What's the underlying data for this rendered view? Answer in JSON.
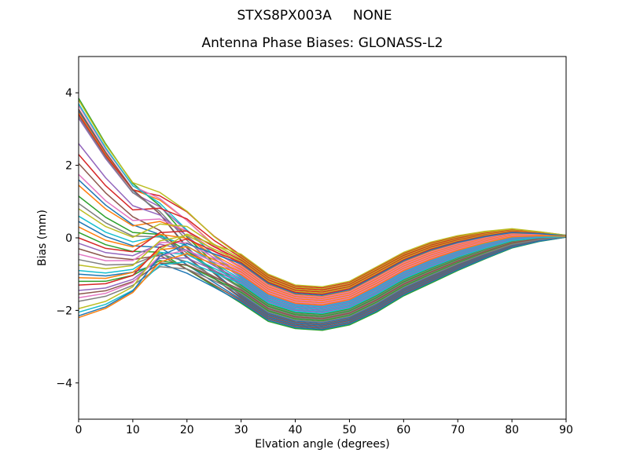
{
  "figure": {
    "suptitle": "STXS8PX003A     NONE",
    "background_color": "#ffffff",
    "spine_color": "#000000"
  },
  "chart_data": {
    "type": "line",
    "suptitle": "STXS8PX003A     NONE",
    "title": "Antenna Phase Biases: GLONASS-L2",
    "xlabel": "Elvation angle (degrees)",
    "ylabel": "Bias (mm)",
    "xlim": [
      0,
      90
    ],
    "ylim": [
      -5,
      5
    ],
    "xticks": [
      0,
      10,
      20,
      30,
      40,
      50,
      60,
      70,
      80,
      90
    ],
    "xtick_labels": [
      "0",
      "10",
      "20",
      "30",
      "40",
      "50",
      "60",
      "70",
      "80",
      "90"
    ],
    "yticks": [
      -4,
      -2,
      0,
      2,
      4
    ],
    "ytick_labels": [
      "−4",
      "−2",
      "0",
      "2",
      "4"
    ],
    "grid": false,
    "legend": null,
    "line_width": 1.5,
    "palette": [
      "#1f77b4",
      "#ff7f0e",
      "#2ca02c",
      "#d62728",
      "#9467bd",
      "#8c564b",
      "#e377c2",
      "#7f7f7f",
      "#bcbd22",
      "#17becf"
    ],
    "x": [
      0,
      5,
      10,
      15,
      20,
      25,
      30,
      35,
      40,
      45,
      50,
      55,
      60,
      65,
      70,
      75,
      80,
      85,
      90
    ],
    "envelope": {
      "top": [
        3.85,
        2.6,
        1.55,
        1.3,
        0.8,
        0.1,
        -0.45,
        -1.0,
        -1.3,
        -1.35,
        -1.2,
        -0.8,
        -0.4,
        -0.12,
        0.06,
        0.18,
        0.25,
        0.17,
        0.07
      ],
      "bottom": [
        -2.2,
        -1.95,
        -1.55,
        -1.05,
        -1.15,
        -1.45,
        -1.8,
        -2.3,
        -2.5,
        -2.55,
        -2.4,
        -2.05,
        -1.6,
        -1.25,
        -0.9,
        -0.58,
        -0.28,
        -0.1,
        0.02
      ]
    },
    "blend_weights": [
      1,
      0.75,
      0.5,
      0.28,
      0.12,
      0.05
    ],
    "series": [
      {
        "color_index": 0,
        "start": 3.5,
        "band_t": 0.171
      },
      {
        "color_index": 1,
        "start": 3.45,
        "band_t": 0.78
      },
      {
        "color_index": 2,
        "start": 3.85,
        "band_t": 0.366
      },
      {
        "color_index": 3,
        "start": 3.4,
        "band_t": 0.976
      },
      {
        "color_index": 4,
        "start": 3.3,
        "band_t": 0.561
      },
      {
        "color_index": 5,
        "start": 3.55,
        "band_t": 0.146
      },
      {
        "color_index": 6,
        "start": 3.65,
        "band_t": 0.756
      },
      {
        "color_index": 7,
        "start": 3.35,
        "band_t": 0.341
      },
      {
        "color_index": 8,
        "start": 3.8,
        "band_t": 0.951
      },
      {
        "color_index": 9,
        "start": 3.7,
        "band_t": 0.537
      },
      {
        "color_index": 0,
        "start": 1.6,
        "band_t": 0.122
      },
      {
        "color_index": 1,
        "start": 1.45,
        "band_t": 0.732
      },
      {
        "color_index": 2,
        "start": 1.15,
        "band_t": 0.317
      },
      {
        "color_index": 3,
        "start": 2.3,
        "band_t": 0.927
      },
      {
        "color_index": 4,
        "start": 2.6,
        "band_t": 0.512
      },
      {
        "color_index": 5,
        "start": 2.05,
        "band_t": 0.098
      },
      {
        "color_index": 6,
        "start": 1.75,
        "band_t": 0.707
      },
      {
        "color_index": 7,
        "start": 0.95,
        "band_t": 0.293
      },
      {
        "color_index": 8,
        "start": 0.8,
        "band_t": 0.902
      },
      {
        "color_index": 9,
        "start": 0.6,
        "band_t": 0.488
      },
      {
        "color_index": 0,
        "start": 0.45,
        "band_t": 0.073
      },
      {
        "color_index": 1,
        "start": 0.3,
        "band_t": 0.683
      },
      {
        "color_index": 2,
        "start": 0.15,
        "band_t": 0.0
      },
      {
        "color_index": 3,
        "start": 0.0,
        "band_t": 0.878
      },
      {
        "color_index": 4,
        "start": -0.15,
        "band_t": 0.463
      },
      {
        "color_index": 5,
        "start": -0.3,
        "band_t": 0.049
      },
      {
        "color_index": 6,
        "start": -0.45,
        "band_t": 0.659
      },
      {
        "color_index": 7,
        "start": -0.6,
        "band_t": 0.244
      },
      {
        "color_index": 8,
        "start": -0.75,
        "band_t": 0.854
      },
      {
        "color_index": 9,
        "start": -0.9,
        "band_t": 0.439
      },
      {
        "color_index": 0,
        "start": -1.0,
        "band_t": 0.024
      },
      {
        "color_index": 1,
        "start": -1.1,
        "band_t": 0.634
      },
      {
        "color_index": 2,
        "start": -1.2,
        "band_t": 0.22
      },
      {
        "color_index": 3,
        "start": -1.3,
        "band_t": 0.829
      },
      {
        "color_index": 4,
        "start": -1.45,
        "band_t": 0.415
      },
      {
        "color_index": 5,
        "start": -1.55,
        "band_t": 0.268
      },
      {
        "color_index": 6,
        "start": -1.65,
        "band_t": 0.61
      },
      {
        "color_index": 7,
        "start": -1.75,
        "band_t": 0.195
      },
      {
        "color_index": 8,
        "start": -1.95,
        "band_t": 1.0
      },
      {
        "color_index": 9,
        "start": -2.05,
        "band_t": 0.39
      },
      {
        "color_index": 0,
        "start": -2.15,
        "band_t": 0.805
      },
      {
        "color_index": 1,
        "start": -2.2,
        "band_t": 0.585
      }
    ]
  }
}
